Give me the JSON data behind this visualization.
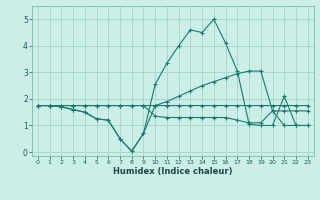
{
  "title": "",
  "xlabel": "Humidex (Indice chaleur)",
  "ylabel": "",
  "bg_color": "#cceee8",
  "grid_color": "#aad8d0",
  "line_color": "#1a7a6e",
  "x": [
    0,
    1,
    2,
    3,
    4,
    5,
    6,
    7,
    8,
    9,
    10,
    11,
    12,
    13,
    14,
    15,
    16,
    17,
    18,
    19,
    20,
    21,
    22,
    23
  ],
  "line1": [
    1.75,
    1.75,
    1.7,
    1.6,
    1.5,
    1.25,
    1.2,
    0.5,
    0.03,
    0.7,
    1.75,
    1.75,
    1.75,
    1.75,
    1.75,
    1.75,
    1.75,
    1.75,
    1.75,
    1.75,
    1.75,
    1.75,
    1.75,
    1.75
  ],
  "line2": [
    1.75,
    1.75,
    1.7,
    1.6,
    1.5,
    1.25,
    1.2,
    0.5,
    0.03,
    0.7,
    2.55,
    3.35,
    4.0,
    4.6,
    4.5,
    5.0,
    4.1,
    3.05,
    1.05,
    1.0,
    1.0,
    2.1,
    1.0,
    1.0
  ],
  "line3": [
    1.75,
    1.75,
    1.75,
    1.75,
    1.75,
    1.75,
    1.75,
    1.75,
    1.75,
    1.75,
    1.75,
    1.9,
    2.1,
    2.3,
    2.5,
    2.65,
    2.8,
    2.95,
    3.05,
    3.05,
    1.55,
    1.55,
    1.55,
    1.55
  ],
  "line4": [
    1.75,
    1.75,
    1.75,
    1.75,
    1.75,
    1.75,
    1.75,
    1.75,
    1.75,
    1.75,
    1.35,
    1.3,
    1.3,
    1.3,
    1.3,
    1.3,
    1.3,
    1.2,
    1.1,
    1.1,
    1.55,
    1.0,
    1.0,
    1.0
  ],
  "ylim": [
    -0.15,
    5.5
  ],
  "xlim": [
    -0.5,
    23.5
  ],
  "yticks": [
    0,
    1,
    2,
    3,
    4,
    5
  ],
  "xticks": [
    0,
    1,
    2,
    3,
    4,
    5,
    6,
    7,
    8,
    9,
    10,
    11,
    12,
    13,
    14,
    15,
    16,
    17,
    18,
    19,
    20,
    21,
    22,
    23
  ]
}
